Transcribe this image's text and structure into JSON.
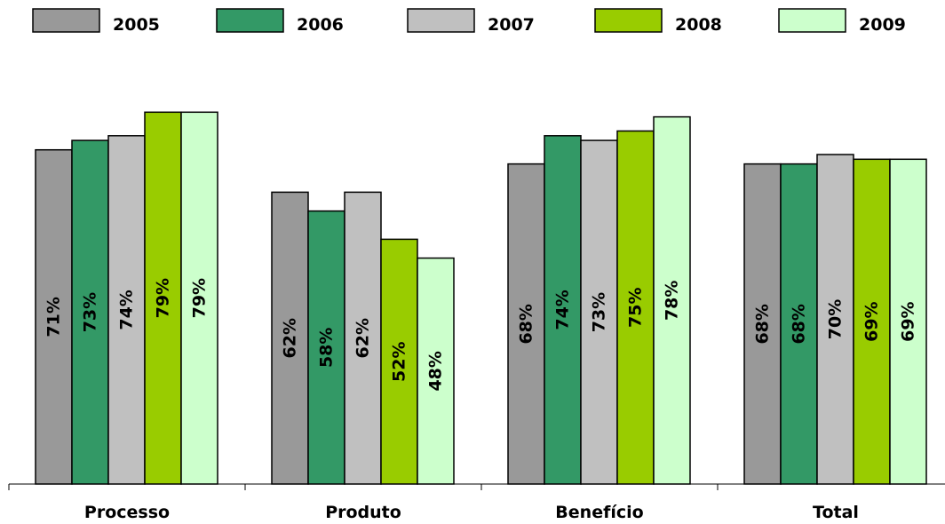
{
  "chart_data": {
    "type": "bar",
    "categories": [
      "Processo",
      "Produto",
      "Benefício",
      "Total"
    ],
    "series": [
      {
        "name": "2005",
        "values": [
          71,
          62,
          68,
          68
        ],
        "labels": [
          "71%",
          "62%",
          "68%",
          "68%"
        ],
        "color": "#999999"
      },
      {
        "name": "2006",
        "values": [
          73,
          58,
          74,
          68
        ],
        "labels": [
          "73%",
          "58%",
          "74%",
          "68%"
        ],
        "color": "#339966"
      },
      {
        "name": "2007",
        "values": [
          74,
          62,
          73,
          70
        ],
        "labels": [
          "74%",
          "62%",
          "73%",
          "70%"
        ],
        "color": "#c0c0c0"
      },
      {
        "name": "2008",
        "values": [
          79,
          52,
          75,
          69
        ],
        "labels": [
          "79%",
          "52%",
          "75%",
          "69%"
        ],
        "color": "#99cc00"
      },
      {
        "name": "2009",
        "values": [
          79,
          48,
          78,
          69
        ],
        "labels": [
          "79%",
          "48%",
          "78%",
          "69%"
        ],
        "color": "#ccffcc"
      }
    ],
    "ylim": [
      0,
      100
    ],
    "grid": false,
    "legend_position": "top",
    "title": "",
    "xlabel": "",
    "ylabel": ""
  }
}
